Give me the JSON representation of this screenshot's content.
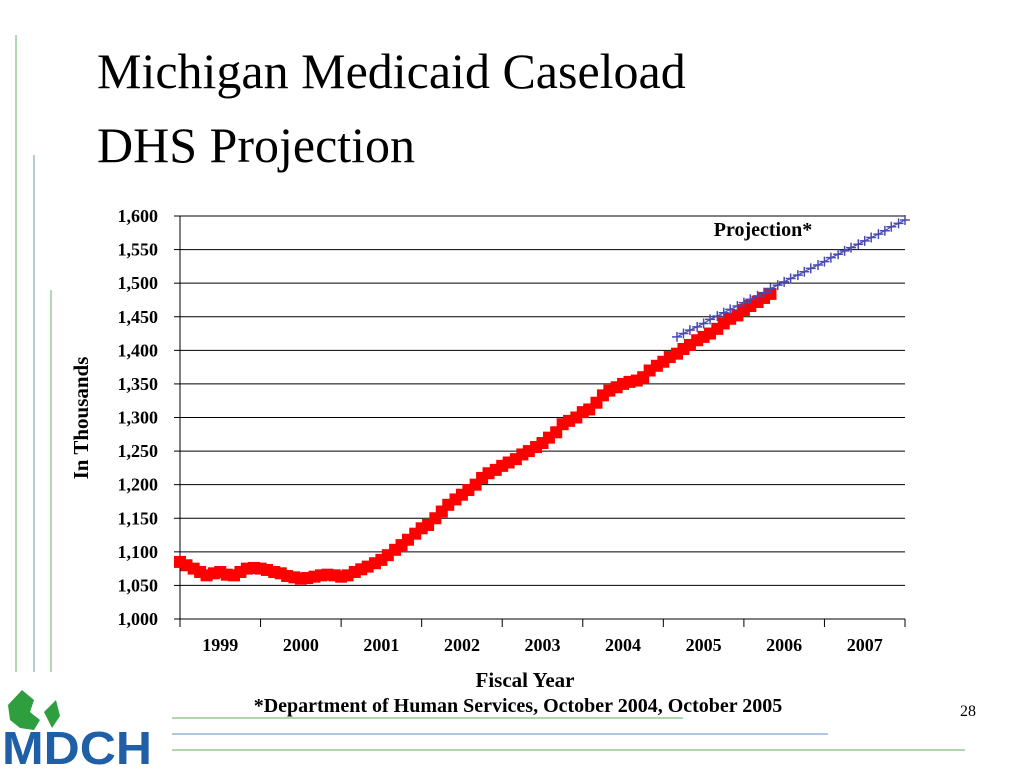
{
  "chart_data": {
    "type": "line",
    "title": "Michigan Medicaid Caseload",
    "subtitle": "DHS Projection",
    "y_label": "In Thousands",
    "x_label": "Fiscal Year",
    "annotation": "Projection*",
    "footnote": "*Department of Human Services, October 2004, October 2005",
    "page_number": "28",
    "logo": "MDCH",
    "grid": true,
    "xlim": [
      1998.5,
      2007.5
    ],
    "xticks": [
      1999,
      2000,
      2001,
      2002,
      2003,
      2004,
      2005,
      2006,
      2007
    ],
    "ylim": [
      1000,
      1600
    ],
    "yticks": [
      {
        "value": 1000,
        "label": "1,000"
      },
      {
        "value": 1050,
        "label": "1,050"
      },
      {
        "value": 1100,
        "label": "1,100"
      },
      {
        "value": 1150,
        "label": "1,150"
      },
      {
        "value": 1200,
        "label": "1,200"
      },
      {
        "value": 1250,
        "label": "1,250"
      },
      {
        "value": 1300,
        "label": "1,300"
      },
      {
        "value": 1350,
        "label": "1,350"
      },
      {
        "value": 1400,
        "label": "1,400"
      },
      {
        "value": 1450,
        "label": "1,450"
      },
      {
        "value": 1500,
        "label": "1,500"
      },
      {
        "value": 1550,
        "label": "1,550"
      },
      {
        "value": 1600,
        "label": "1,600"
      }
    ],
    "series": [
      {
        "color": "#ff0000",
        "marker": "square",
        "line": false,
        "x": [
          1998.5,
          1998.58,
          1998.67,
          1998.75,
          1998.83,
          1998.92,
          1999.0,
          1999.08,
          1999.17,
          1999.25,
          1999.33,
          1999.42,
          1999.5,
          1999.58,
          1999.67,
          1999.75,
          1999.83,
          1999.92,
          2000.0,
          2000.08,
          2000.17,
          2000.25,
          2000.33,
          2000.42,
          2000.5,
          2000.58,
          2000.67,
          2000.75,
          2000.83,
          2000.92,
          2001.0,
          2001.08,
          2001.17,
          2001.25,
          2001.33,
          2001.42,
          2001.5,
          2001.58,
          2001.67,
          2001.75,
          2001.83,
          2001.92,
          2002.0,
          2002.08,
          2002.17,
          2002.25,
          2002.33,
          2002.42,
          2002.5,
          2002.58,
          2002.67,
          2002.75,
          2002.83,
          2002.92,
          2003.0,
          2003.08,
          2003.17,
          2003.25,
          2003.33,
          2003.42,
          2003.5,
          2003.58,
          2003.67,
          2003.75,
          2003.83,
          2003.92,
          2004.0,
          2004.08,
          2004.17,
          2004.25,
          2004.33,
          2004.42,
          2004.5,
          2004.58,
          2004.67,
          2004.75,
          2004.83,
          2004.92,
          2005.0,
          2005.08,
          2005.17,
          2005.25,
          2005.33,
          2005.42,
          2005.5,
          2005.58,
          2005.67,
          2005.75,
          2005.83
        ],
        "values": [
          1085,
          1080,
          1075,
          1070,
          1065,
          1068,
          1070,
          1066,
          1065,
          1070,
          1075,
          1076,
          1075,
          1073,
          1070,
          1068,
          1064,
          1062,
          1060,
          1061,
          1063,
          1065,
          1066,
          1065,
          1063,
          1065,
          1070,
          1074,
          1078,
          1083,
          1088,
          1095,
          1103,
          1110,
          1118,
          1127,
          1135,
          1140,
          1150,
          1160,
          1170,
          1178,
          1185,
          1192,
          1200,
          1210,
          1217,
          1222,
          1228,
          1233,
          1238,
          1245,
          1250,
          1256,
          1262,
          1270,
          1278,
          1290,
          1295,
          1300,
          1308,
          1312,
          1322,
          1333,
          1340,
          1345,
          1350,
          1353,
          1355,
          1360,
          1370,
          1377,
          1383,
          1390,
          1395,
          1402,
          1408,
          1415,
          1420,
          1425,
          1432,
          1440,
          1447,
          1452,
          1460,
          1466,
          1472,
          1478,
          1484
        ]
      },
      {
        "color": "#4a4ab0",
        "marker": "plus",
        "line": true,
        "x": [
          2004.67,
          2004.75,
          2004.83,
          2004.92,
          2005.0,
          2005.08,
          2005.17,
          2005.25,
          2005.33,
          2005.42,
          2005.5,
          2005.58,
          2005.67,
          2005.75,
          2005.83,
          2005.92,
          2006.0,
          2006.08,
          2006.17,
          2006.25,
          2006.33,
          2006.42,
          2006.5,
          2006.58,
          2006.67,
          2006.75,
          2006.83,
          2006.92,
          2007.0,
          2007.08,
          2007.17,
          2007.25,
          2007.33,
          2007.42,
          2007.5
        ],
        "values": [
          1420,
          1425,
          1430,
          1435,
          1440,
          1446,
          1451,
          1456,
          1461,
          1466,
          1471,
          1476,
          1481,
          1486,
          1492,
          1497,
          1502,
          1507,
          1512,
          1517,
          1522,
          1527,
          1532,
          1538,
          1543,
          1548,
          1553,
          1558,
          1563,
          1568,
          1573,
          1578,
          1584,
          1589,
          1594
        ]
      }
    ]
  }
}
